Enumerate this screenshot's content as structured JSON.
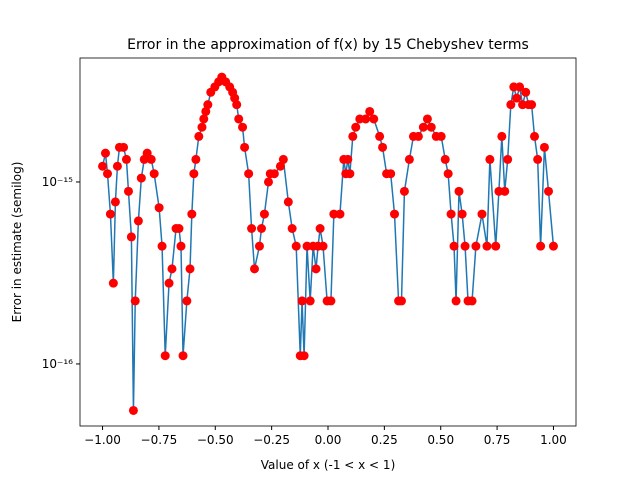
{
  "chart_data": {
    "type": "line",
    "title": "Error in the approximation of f(x) by 15 Chebyshev terms",
    "x_label": "Value of x (-1 < x < 1)",
    "y_label": "Error in estimate (semilog)",
    "log_y": true,
    "color": "#1f77b4",
    "marker_color": "#ff0000",
    "xlim": [
      -1.1,
      1.1
    ],
    "ylim": [
      4.56e-17,
      4.8e-15
    ],
    "xticks": [
      {
        "value": -1,
        "label": "−1.00"
      },
      {
        "value": -0.75,
        "label": "−0.75"
      },
      {
        "value": -0.5,
        "label": "−0.50"
      },
      {
        "value": -0.25,
        "label": "−0.25"
      },
      {
        "value": 0,
        "label": "0.00"
      },
      {
        "value": 0.25,
        "label": "0.25"
      },
      {
        "value": 0.5,
        "label": "0.50"
      },
      {
        "value": 0.75,
        "label": "0.75"
      },
      {
        "value": 1,
        "label": "1.00"
      }
    ],
    "yticks": [
      {
        "value": 1e-16,
        "label": "10⁻¹⁶"
      },
      {
        "value": 1e-15,
        "label": "10⁻¹⁵"
      }
    ],
    "x": [
      -1.0,
      -0.987,
      -0.978,
      -0.965,
      -0.952,
      -0.943,
      -0.934,
      -0.925,
      -0.907,
      -0.894,
      -0.885,
      -0.872,
      -0.863,
      -0.855,
      -0.841,
      -0.828,
      -0.815,
      -0.802,
      -0.784,
      -0.771,
      -0.749,
      -0.736,
      -0.722,
      -0.705,
      -0.692,
      -0.674,
      -0.661,
      -0.652,
      -0.643,
      -0.626,
      -0.612,
      -0.604,
      -0.595,
      -0.586,
      -0.573,
      -0.559,
      -0.551,
      -0.542,
      -0.533,
      -0.52,
      -0.502,
      -0.485,
      -0.471,
      -0.454,
      -0.436,
      -0.423,
      -0.414,
      -0.405,
      -0.396,
      -0.379,
      -0.37,
      -0.352,
      -0.339,
      -0.326,
      -0.304,
      -0.295,
      -0.282,
      -0.264,
      -0.256,
      -0.238,
      -0.211,
      -0.198,
      -0.176,
      -0.159,
      -0.141,
      -0.123,
      -0.115,
      -0.106,
      -0.093,
      -0.079,
      -0.066,
      -0.053,
      -0.044,
      -0.035,
      -0.022,
      -0.004,
      0.013,
      0.026,
      0.053,
      0.07,
      0.079,
      0.088,
      0.097,
      0.11,
      0.123,
      0.141,
      0.167,
      0.185,
      0.203,
      0.229,
      0.242,
      0.26,
      0.278,
      0.295,
      0.313,
      0.326,
      0.339,
      0.361,
      0.379,
      0.401,
      0.423,
      0.441,
      0.458,
      0.48,
      0.502,
      0.52,
      0.533,
      0.546,
      0.559,
      0.568,
      0.581,
      0.595,
      0.608,
      0.621,
      0.639,
      0.656,
      0.683,
      0.705,
      0.718,
      0.744,
      0.758,
      0.771,
      0.784,
      0.797,
      0.811,
      0.824,
      0.837,
      0.85,
      0.863,
      0.877,
      0.89,
      0.903,
      0.916,
      0.93,
      0.943,
      0.96,
      0.978,
      1.0
    ],
    "values": [
      1.22e-15,
      1.44e-15,
      1.11e-15,
      6.66e-16,
      2.78e-16,
      7.77e-16,
      1.22e-15,
      1.55e-15,
      1.55e-15,
      1.33e-15,
      8.88e-16,
      4.99e-16,
      5.55e-17,
      2.22e-16,
      6.11e-16,
      1.05e-15,
      1.33e-15,
      1.44e-15,
      1.33e-15,
      1.11e-15,
      7.22e-16,
      4.44e-16,
      1.11e-16,
      2.78e-16,
      3.33e-16,
      5.55e-16,
      5.55e-16,
      4.44e-16,
      1.11e-16,
      2.22e-16,
      3.33e-16,
      6.66e-16,
      1.11e-15,
      1.33e-15,
      1.78e-15,
      2e-15,
      2.22e-15,
      2.44e-15,
      2.66e-15,
      3.11e-15,
      3.33e-15,
      3.55e-15,
      3.77e-15,
      3.55e-15,
      3.33e-15,
      3.11e-15,
      2.89e-15,
      2.66e-15,
      2.22e-15,
      2e-15,
      1.55e-15,
      1.11e-15,
      5.55e-16,
      3.33e-16,
      4.44e-16,
      5.55e-16,
      6.66e-16,
      1e-15,
      1.11e-15,
      1.11e-15,
      1.22e-15,
      1.33e-15,
      7.77e-16,
      5.55e-16,
      4.44e-16,
      1.11e-16,
      2.22e-16,
      1.11e-16,
      4.44e-16,
      2.22e-16,
      4.44e-16,
      3.33e-16,
      4.44e-16,
      5.55e-16,
      4.44e-16,
      2.22e-16,
      2.22e-16,
      6.66e-16,
      6.66e-16,
      1.33e-15,
      1.11e-15,
      1.33e-15,
      1.11e-15,
      1.78e-15,
      2e-15,
      2.22e-15,
      2.22e-15,
      2.44e-15,
      2.22e-15,
      1.78e-15,
      1.55e-15,
      1.11e-15,
      1.11e-15,
      6.66e-16,
      2.22e-16,
      2.22e-16,
      8.88e-16,
      1.33e-15,
      1.78e-15,
      1.78e-15,
      2e-15,
      2.22e-15,
      2e-15,
      1.78e-15,
      1.78e-15,
      1.33e-15,
      1.11e-15,
      6.66e-16,
      4.44e-16,
      2.22e-16,
      8.88e-16,
      6.66e-16,
      4.44e-16,
      2.22e-16,
      2.22e-16,
      4.44e-16,
      6.66e-16,
      4.44e-16,
      1.33e-15,
      4.44e-16,
      8.88e-16,
      1.78e-15,
      8.88e-16,
      1.33e-15,
      2.66e-15,
      3.33e-15,
      2.89e-15,
      3.33e-15,
      2.66e-15,
      3.11e-15,
      2.66e-15,
      2.66e-15,
      1.78e-15,
      1.33e-15,
      4.44e-16,
      1.55e-15,
      8.88e-16,
      4.44e-16
    ]
  }
}
